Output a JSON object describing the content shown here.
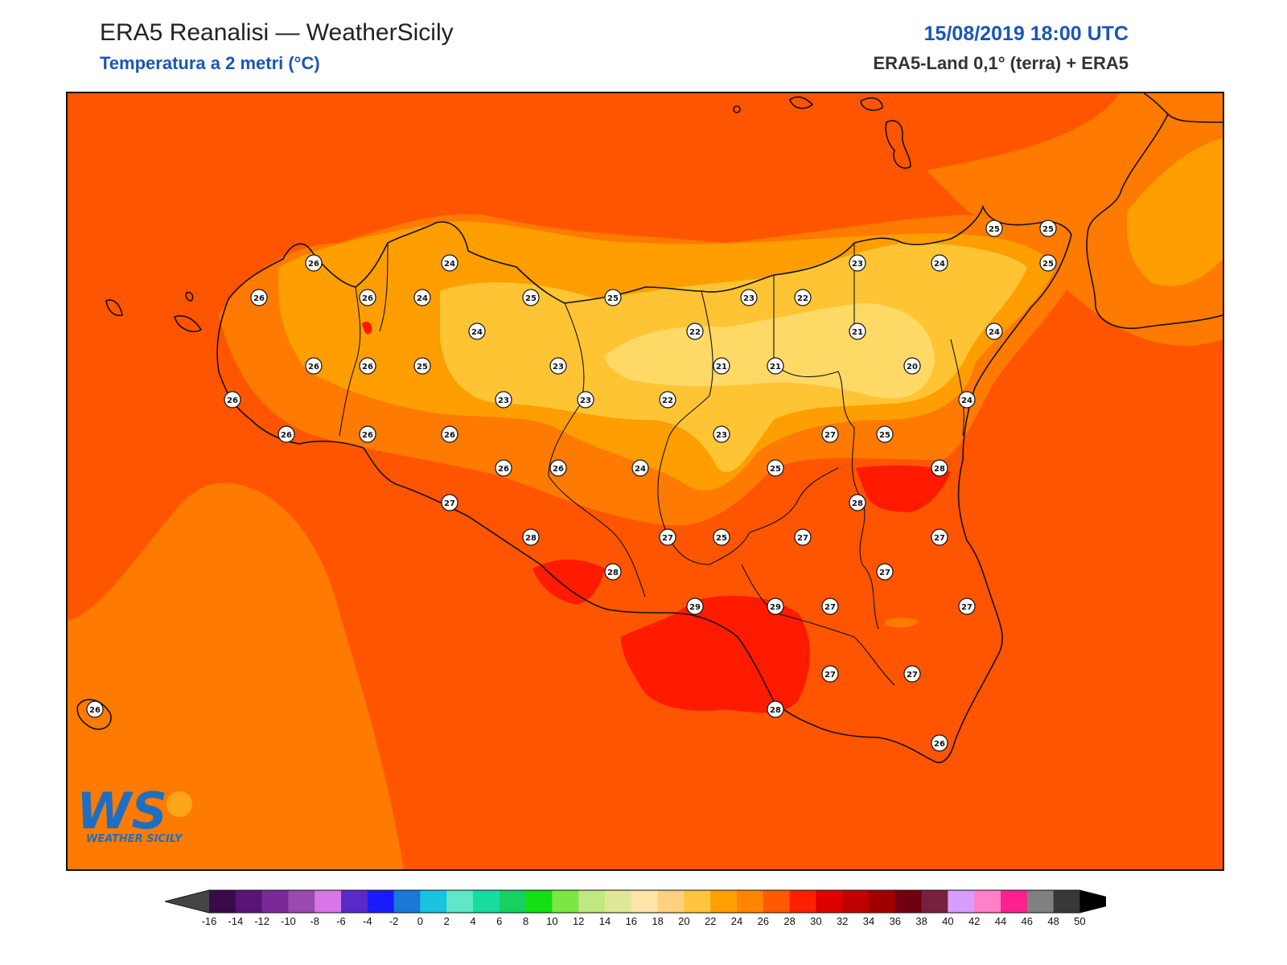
{
  "header": {
    "title": "ERA5 Reanalisi — WeatherSicily",
    "subtitle": "Temperatura a 2 metri (°C)",
    "datetime": "15/08/2019 18:00 UTC",
    "source": "ERA5-Land 0,1° (terra) + ERA5"
  },
  "logo": {
    "text": "WS",
    "caption": "WEATHER SICILY",
    "icon": "weathersicily-logo"
  },
  "colors": {
    "sea_hot": "#ff5500",
    "band_26": "#ff7a00",
    "band_24": "#ff9e00",
    "band_22": "#ffc433",
    "band_20": "#ffd966",
    "band_28": "#ff1a00",
    "coast": "#111111"
  },
  "colorbar": {
    "labels": [
      "-16",
      "-14",
      "-12",
      "-10",
      "-8",
      "-6",
      "-4",
      "-2",
      "0",
      "2",
      "4",
      "6",
      "8",
      "10",
      "12",
      "14",
      "16",
      "18",
      "20",
      "22",
      "24",
      "26",
      "28",
      "30",
      "32",
      "34",
      "36",
      "38",
      "40",
      "42",
      "44",
      "46",
      "48",
      "50"
    ],
    "colors": [
      "#3a0a4a",
      "#5a1276",
      "#7a2a96",
      "#9a48b2",
      "#d876e8",
      "#5a2ac8",
      "#1a1aff",
      "#1a78d8",
      "#18c4e0",
      "#5ee8c8",
      "#16dca0",
      "#18d060",
      "#12e012",
      "#7ae844",
      "#c0e880",
      "#e0e898",
      "#ffe4a8",
      "#ffd080",
      "#ffc440",
      "#ffa000",
      "#ff8400",
      "#ff5a00",
      "#ff2000",
      "#e00000",
      "#c00000",
      "#a00000",
      "#700010",
      "#782040",
      "#d89cff",
      "#ff80c8",
      "#ff2090",
      "#808080",
      "#383838"
    ],
    "under_color": "#444444",
    "over_color": "#000000"
  },
  "stations": [
    {
      "v": "26"
    },
    {
      "v": "26"
    },
    {
      "v": "26"
    },
    {
      "v": "24"
    },
    {
      "v": "24"
    },
    {
      "v": "25"
    },
    {
      "v": "25"
    },
    {
      "v": "23"
    },
    {
      "v": "23"
    },
    {
      "v": "22"
    },
    {
      "v": "24"
    },
    {
      "v": "25"
    },
    {
      "v": "25"
    },
    {
      "v": "25"
    },
    {
      "v": "26"
    },
    {
      "v": "26"
    },
    {
      "v": "25"
    },
    {
      "v": "24"
    },
    {
      "v": "23"
    },
    {
      "v": "22"
    },
    {
      "v": "21"
    },
    {
      "v": "21"
    },
    {
      "v": "21"
    },
    {
      "v": "20"
    },
    {
      "v": "24"
    },
    {
      "v": "26"
    },
    {
      "v": "23"
    },
    {
      "v": "23"
    },
    {
      "v": "22"
    },
    {
      "v": "24"
    },
    {
      "v": "26"
    },
    {
      "v": "26"
    },
    {
      "v": "26"
    },
    {
      "v": "23"
    },
    {
      "v": "27"
    },
    {
      "v": "25"
    },
    {
      "v": "26"
    },
    {
      "v": "26"
    },
    {
      "v": "24"
    },
    {
      "v": "25"
    },
    {
      "v": "28"
    },
    {
      "v": "27"
    },
    {
      "v": "28"
    },
    {
      "v": "28"
    },
    {
      "v": "27"
    },
    {
      "v": "25"
    },
    {
      "v": "27"
    },
    {
      "v": "27"
    },
    {
      "v": "28"
    },
    {
      "v": "27"
    },
    {
      "v": "29"
    },
    {
      "v": "29"
    },
    {
      "v": "27"
    },
    {
      "v": "27"
    },
    {
      "v": "27"
    },
    {
      "v": "27"
    },
    {
      "v": "28"
    },
    {
      "v": "26"
    },
    {
      "v": "26"
    }
  ]
}
